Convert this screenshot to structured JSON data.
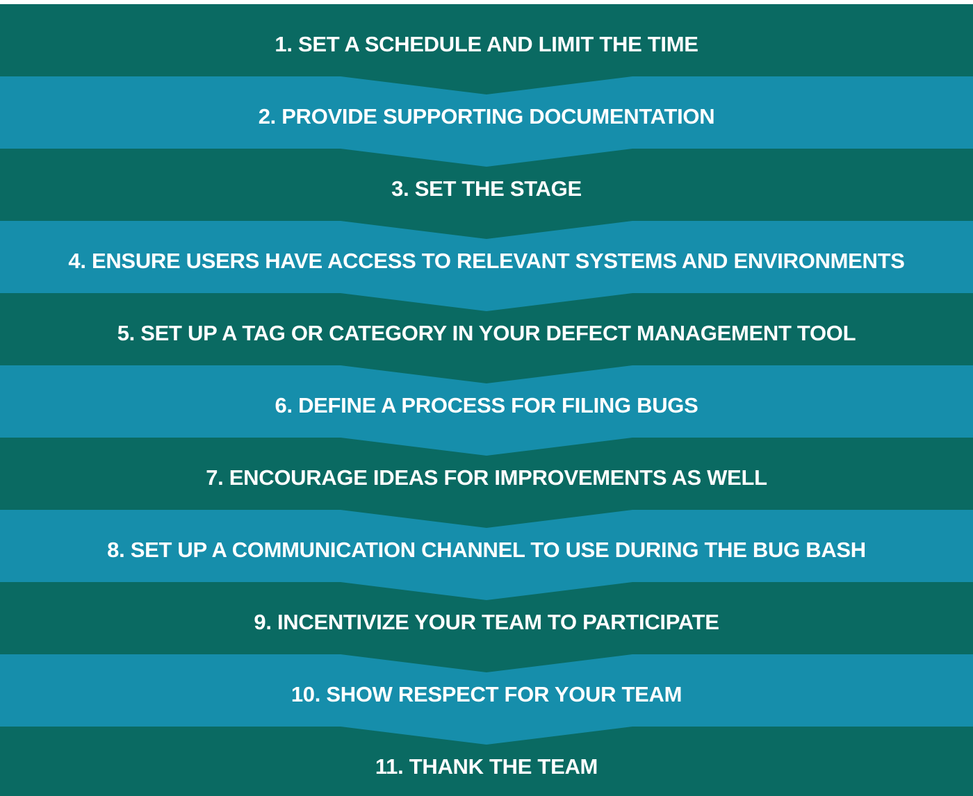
{
  "colors": {
    "dark_band": "#0a6a62",
    "light_band": "#168eab",
    "text": "#ffffff",
    "page": "#ffffff"
  },
  "steps": [
    {
      "label": "1. SET A SCHEDULE AND LIMIT THE TIME"
    },
    {
      "label": "2. PROVIDE SUPPORTING DOCUMENTATION"
    },
    {
      "label": "3. SET THE STAGE"
    },
    {
      "label": "4. ENSURE USERS HAVE ACCESS TO RELEVANT SYSTEMS AND ENVIRONMENTS"
    },
    {
      "label": "5. SET UP A TAG OR CATEGORY IN YOUR DEFECT MANAGEMENT TOOL"
    },
    {
      "label": "6. DEFINE A PROCESS FOR FILING BUGS"
    },
    {
      "label": "7. ENCOURAGE IDEAS FOR IMPROVEMENTS AS WELL"
    },
    {
      "label": "8. SET UP A COMMUNICATION CHANNEL TO USE DURING THE BUG BASH"
    },
    {
      "label": "9. INCENTIVIZE YOUR TEAM TO PARTICIPATE"
    },
    {
      "label": "10. SHOW RESPECT FOR YOUR TEAM"
    },
    {
      "label": "11. THANK THE TEAM"
    }
  ]
}
